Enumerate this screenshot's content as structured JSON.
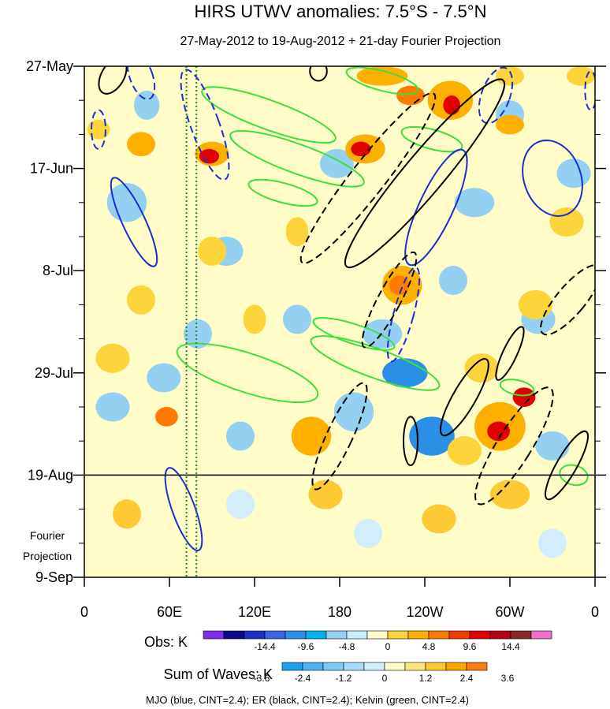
{
  "chart_data": {
    "type": "heatmap",
    "title": "HIRS UTWV anomalies: 7.5°S - 7.5°N",
    "subtitle": "27-May-2012 to 19-Aug-2012 + 21-day Fourier Projection",
    "x_ticks": [
      {
        "label": "0",
        "lon": 0
      },
      {
        "label": "60E",
        "lon": 60
      },
      {
        "label": "120E",
        "lon": 120
      },
      {
        "label": "180",
        "lon": 180
      },
      {
        "label": "120W",
        "lon": 240
      },
      {
        "label": "60W",
        "lon": 300
      },
      {
        "label": "0",
        "lon": 360
      }
    ],
    "xlim": [
      0,
      360
    ],
    "y_ticks": [
      {
        "label": "27-May",
        "day": 0
      },
      {
        "label": "17-Jun",
        "day": 21
      },
      {
        "label": "8-Jul",
        "day": 42
      },
      {
        "label": "29-Jul",
        "day": 63
      },
      {
        "label": "19-Aug",
        "day": 84
      },
      {
        "label": "9-Sep",
        "day": 105
      }
    ],
    "ylim_days": [
      0,
      105
    ],
    "projection_start_day": 84,
    "projection_label": [
      "Fourier",
      "Projection"
    ],
    "reference_longitudes": [
      72,
      79
    ],
    "obs_colorbar": {
      "label": "Obs: K",
      "colors": [
        "#7a2ee8",
        "#0a0a8a",
        "#1c2fc8",
        "#3a64e0",
        "#2a90e6",
        "#00b4ee",
        "#94d0f2",
        "#c8f0f8",
        "#fffcc8",
        "#fdd43a",
        "#fdb000",
        "#fe7a00",
        "#f23b00",
        "#e00000",
        "#b80018",
        "#8c2a2a",
        "#f070c8"
      ],
      "tick_labels": [
        "-14.4",
        "-9.6",
        "-4.8",
        "0",
        "4.8",
        "9.6",
        "14.4"
      ]
    },
    "waves_colorbar": {
      "label": "Sum of Waves: K",
      "colors": [
        "#1ea0f0",
        "#4cb4f2",
        "#7ccaf6",
        "#a8dcfa",
        "#d2eefc",
        "#fffcc8",
        "#fee67a",
        "#fdca34",
        "#fca500",
        "#fb7c10"
      ],
      "tick_labels": [
        "-3.6",
        "-2.4",
        "-1.2",
        "0",
        "1.2",
        "2.4",
        "3.6"
      ]
    },
    "footnote": "MJO (blue, CINT=2.4); ER (black, CINT=2.4); Kelvin (green, CINT=2.4)",
    "anomaly_blobs": [
      {
        "lon": 44,
        "day": 8,
        "rlon": 9,
        "rday": 3,
        "cat": "neg1"
      },
      {
        "lon": 30,
        "day": 28,
        "rlon": 14,
        "rday": 4,
        "cat": "neg1"
      },
      {
        "lon": 100,
        "day": 38,
        "rlon": 12,
        "rday": 3,
        "cat": "neg1"
      },
      {
        "lon": 150,
        "day": 52,
        "rlon": 10,
        "rday": 3,
        "cat": "neg1"
      },
      {
        "lon": 210,
        "day": 55,
        "rlon": 14,
        "rday": 3,
        "cat": "neg1"
      },
      {
        "lon": 226,
        "day": 63,
        "rlon": 16,
        "rday": 3,
        "cat": "neg2"
      },
      {
        "lon": 56,
        "day": 64,
        "rlon": 12,
        "rday": 3,
        "cat": "neg1"
      },
      {
        "lon": 190,
        "day": 71,
        "rlon": 14,
        "rday": 4,
        "cat": "neg1"
      },
      {
        "lon": 245,
        "day": 76,
        "rlon": 16,
        "rday": 4,
        "cat": "neg2"
      },
      {
        "lon": 275,
        "day": 28,
        "rlon": 14,
        "rday": 3,
        "cat": "neg1"
      },
      {
        "lon": 345,
        "day": 22,
        "rlon": 12,
        "rday": 3,
        "cat": "neg1"
      },
      {
        "lon": 320,
        "day": 52,
        "rlon": 12,
        "rday": 3,
        "cat": "neg1"
      },
      {
        "lon": 110,
        "day": 76,
        "rlon": 10,
        "rday": 3,
        "cat": "neg1"
      },
      {
        "lon": 330,
        "day": 78,
        "rlon": 12,
        "rday": 3,
        "cat": "neg1"
      },
      {
        "lon": 178,
        "day": 20,
        "rlon": 12,
        "rday": 3,
        "cat": "neg1"
      },
      {
        "lon": 260,
        "day": 44,
        "rlon": 10,
        "rday": 3,
        "cat": "neg1"
      },
      {
        "lon": 80,
        "day": 55,
        "rlon": 10,
        "rday": 3,
        "cat": "neg1"
      },
      {
        "lon": 300,
        "day": 10,
        "rlon": 10,
        "rday": 3,
        "cat": "neg1"
      },
      {
        "lon": 20,
        "day": 70,
        "rlon": 12,
        "rday": 3,
        "cat": "neg1"
      },
      {
        "lon": 210,
        "day": 2,
        "rlon": 18,
        "rday": 2,
        "cat": "pos2"
      },
      {
        "lon": 230,
        "day": 6,
        "rlon": 10,
        "rday": 2,
        "cat": "pos3"
      },
      {
        "lon": 258,
        "day": 7,
        "rlon": 16,
        "rday": 4,
        "cat": "pos2"
      },
      {
        "lon": 259,
        "day": 8,
        "rlon": 6,
        "rday": 2,
        "cat": "pos4"
      },
      {
        "lon": 198,
        "day": 17,
        "rlon": 14,
        "rday": 3,
        "cat": "pos2"
      },
      {
        "lon": 195,
        "day": 17,
        "rlon": 7,
        "rday": 1.5,
        "cat": "pos4"
      },
      {
        "lon": 90,
        "day": 18,
        "rlon": 12,
        "rday": 2.5,
        "cat": "pos2"
      },
      {
        "lon": 88,
        "day": 18.5,
        "rlon": 7,
        "rday": 1.5,
        "cat": "pos4"
      },
      {
        "lon": 40,
        "day": 16,
        "rlon": 10,
        "rday": 2.5,
        "cat": "pos2"
      },
      {
        "lon": 10,
        "day": 13,
        "rlon": 8,
        "rday": 2,
        "cat": "pos1"
      },
      {
        "lon": 300,
        "day": 12,
        "rlon": 10,
        "rday": 2,
        "cat": "pos2"
      },
      {
        "lon": 350,
        "day": 2,
        "rlon": 10,
        "rday": 2,
        "cat": "pos1"
      },
      {
        "lon": 300,
        "day": 2,
        "rlon": 10,
        "rday": 2,
        "cat": "pos1"
      },
      {
        "lon": 224,
        "day": 45,
        "rlon": 14,
        "rday": 4,
        "cat": "pos2"
      },
      {
        "lon": 222,
        "day": 45,
        "rlon": 7,
        "rday": 2,
        "cat": "pos3"
      },
      {
        "lon": 318,
        "day": 49,
        "rlon": 12,
        "rday": 3,
        "cat": "pos1"
      },
      {
        "lon": 293,
        "day": 74,
        "rlon": 18,
        "rday": 5,
        "cat": "pos2"
      },
      {
        "lon": 292,
        "day": 75,
        "rlon": 8,
        "rday": 2,
        "cat": "pos4"
      },
      {
        "lon": 160,
        "day": 76,
        "rlon": 14,
        "rday": 4,
        "cat": "pos2"
      },
      {
        "lon": 58,
        "day": 72,
        "rlon": 8,
        "rday": 2,
        "cat": "pos3"
      },
      {
        "lon": 90,
        "day": 38,
        "rlon": 10,
        "rday": 3,
        "cat": "pos1"
      },
      {
        "lon": 40,
        "day": 48,
        "rlon": 10,
        "rday": 3,
        "cat": "pos1"
      },
      {
        "lon": 120,
        "day": 52,
        "rlon": 8,
        "rday": 3,
        "cat": "pos1"
      },
      {
        "lon": 280,
        "day": 62,
        "rlon": 12,
        "rday": 3,
        "cat": "pos1"
      },
      {
        "lon": 20,
        "day": 60,
        "rlon": 12,
        "rday": 3,
        "cat": "pos1"
      },
      {
        "lon": 340,
        "day": 32,
        "rlon": 12,
        "rday": 3,
        "cat": "pos1"
      },
      {
        "lon": 268,
        "day": 79,
        "rlon": 12,
        "rday": 3,
        "cat": "pos1"
      },
      {
        "lon": 310,
        "day": 68,
        "rlon": 8,
        "rday": 2,
        "cat": "pos4"
      },
      {
        "lon": 150,
        "day": 34,
        "rlon": 8,
        "rday": 3,
        "cat": "pos1"
      },
      {
        "lon": 30,
        "day": 92,
        "rlon": 10,
        "rday": 3,
        "cat": "fpos1"
      },
      {
        "lon": 170,
        "day": 88,
        "rlon": 12,
        "rday": 3,
        "cat": "fpos1"
      },
      {
        "lon": 250,
        "day": 93,
        "rlon": 12,
        "rday": 3,
        "cat": "fpos1"
      },
      {
        "lon": 300,
        "day": 88,
        "rlon": 14,
        "rday": 3,
        "cat": "fpos1"
      },
      {
        "lon": 110,
        "day": 90,
        "rlon": 10,
        "rday": 3,
        "cat": "fneg1"
      },
      {
        "lon": 200,
        "day": 96,
        "rlon": 10,
        "rday": 3,
        "cat": "fneg1"
      },
      {
        "lon": 330,
        "day": 98,
        "rlon": 10,
        "rday": 3,
        "cat": "fneg1"
      }
    ],
    "mjo_contours": [
      {
        "lon": 330,
        "day": 23,
        "rlon": 20,
        "rday": 8,
        "angle": -20,
        "dash": false
      },
      {
        "lon": 248,
        "day": 29,
        "rlon": 12,
        "rday": 13,
        "angle": 25,
        "dash": false
      },
      {
        "lon": 35,
        "day": 32,
        "rlon": 8,
        "rday": 10,
        "angle": -25,
        "dash": false
      },
      {
        "lon": 85,
        "day": 12,
        "rlon": 10,
        "rday": 12,
        "angle": -20,
        "dash": true
      },
      {
        "lon": 40,
        "day": 2,
        "rlon": 8,
        "rday": 5,
        "angle": -20,
        "dash": true
      },
      {
        "lon": 225,
        "day": 51,
        "rlon": 7,
        "rday": 10,
        "angle": 15,
        "dash": true
      },
      {
        "lon": 290,
        "day": 6,
        "rlon": 10,
        "rday": 6,
        "angle": 20,
        "dash": true
      },
      {
        "lon": 357,
        "day": 5,
        "rlon": 4,
        "rday": 4,
        "angle": 0,
        "dash": true
      },
      {
        "lon": 70,
        "day": 91,
        "rlon": 8,
        "rday": 9,
        "angle": -20,
        "dash": false
      },
      {
        "lon": 10,
        "day": 13,
        "rlon": 5,
        "rday": 4,
        "angle": 0,
        "dash": true
      }
    ],
    "er_contours": [
      {
        "lon": 200,
        "day": 23,
        "rlon": 12,
        "rday": 22,
        "angle": 38,
        "dash": true
      },
      {
        "lon": 240,
        "day": 22,
        "rlon": 14,
        "rday": 25,
        "angle": 40,
        "dash": false
      },
      {
        "lon": 215,
        "day": 48,
        "rlon": 8,
        "rday": 11,
        "angle": 28,
        "dash": true
      },
      {
        "lon": 343,
        "day": 48,
        "rlon": 10,
        "rday": 9,
        "angle": 40,
        "dash": true
      },
      {
        "lon": 303,
        "day": 78,
        "rlon": 12,
        "rday": 14,
        "angle": 32,
        "dash": true
      },
      {
        "lon": 180,
        "day": 76,
        "rlon": 9,
        "rday": 12,
        "angle": 25,
        "dash": true
      },
      {
        "lon": 268,
        "day": 68,
        "rlon": 8,
        "rday": 9,
        "angle": 30,
        "dash": false
      },
      {
        "lon": 230,
        "day": 77,
        "rlon": 5,
        "rday": 5,
        "angle": 0,
        "dash": false
      },
      {
        "lon": 340,
        "day": 82,
        "rlon": 7,
        "rday": 8,
        "angle": 30,
        "dash": false
      },
      {
        "lon": 300,
        "day": 59,
        "rlon": 5,
        "rday": 6,
        "angle": 25,
        "dash": false
      },
      {
        "lon": 20,
        "day": 2,
        "rlon": 8,
        "rday": 4,
        "angle": 30,
        "dash": false
      },
      {
        "lon": 165,
        "day": 1,
        "rlon": 6,
        "rday": 2,
        "angle": 0,
        "dash": false
      }
    ],
    "kelvin_contours": [
      {
        "lon": 130,
        "day": 10,
        "rlon": 50,
        "rday": 3,
        "angle": 20
      },
      {
        "lon": 150,
        "day": 19,
        "rlon": 50,
        "rday": 3,
        "angle": 20
      },
      {
        "lon": 140,
        "day": 26,
        "rlon": 25,
        "rday": 2,
        "angle": 15
      },
      {
        "lon": 190,
        "day": 55,
        "rlon": 30,
        "rday": 2,
        "angle": 18
      },
      {
        "lon": 205,
        "day": 61,
        "rlon": 48,
        "rday": 3,
        "angle": 20
      },
      {
        "lon": 115,
        "day": 63,
        "rlon": 52,
        "rday": 4,
        "angle": 18
      },
      {
        "lon": 245,
        "day": 15,
        "rlon": 22,
        "rday": 2,
        "angle": 15
      },
      {
        "lon": 210,
        "day": 3,
        "rlon": 26,
        "rday": 2,
        "angle": 15
      },
      {
        "lon": 305,
        "day": 66,
        "rlon": 12,
        "rday": 1.5,
        "angle": 12
      },
      {
        "lon": 345,
        "day": 84,
        "rlon": 10,
        "rday": 2,
        "angle": 15
      }
    ]
  }
}
